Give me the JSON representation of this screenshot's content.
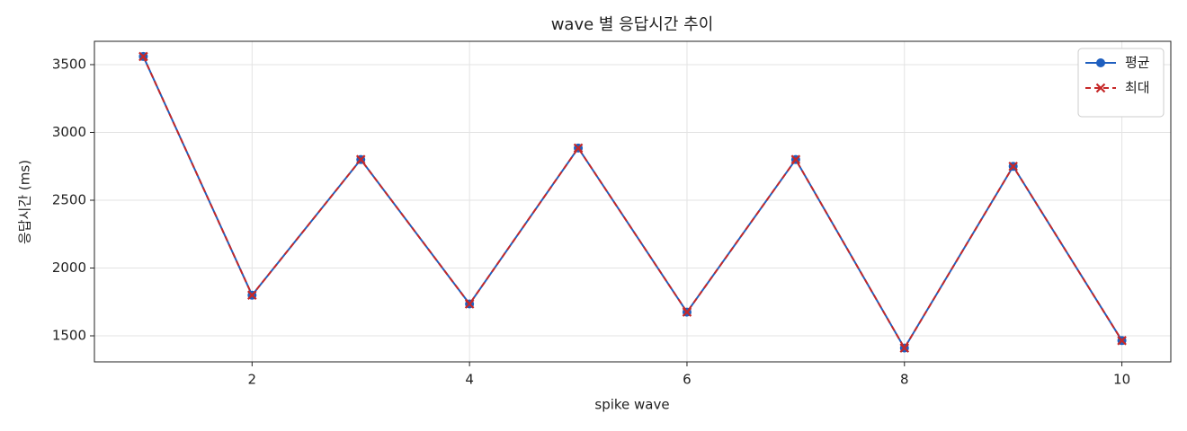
{
  "chart_data": {
    "type": "line",
    "title": "wave 별 응답시간 추이",
    "xlabel": "spike wave",
    "ylabel": "응답시간 (ms)",
    "x": [
      1,
      2,
      3,
      4,
      5,
      6,
      7,
      8,
      9,
      10
    ],
    "series": [
      {
        "name": "평균",
        "color": "#1f5fbf",
        "linestyle": "solid",
        "marker": "circle",
        "values": [
          3560,
          1800,
          2800,
          1735,
          2885,
          1675,
          2800,
          1410,
          2750,
          1465
        ]
      },
      {
        "name": "최대",
        "color": "#c62828",
        "linestyle": "dashed",
        "marker": "x",
        "values": [
          3560,
          1800,
          2800,
          1735,
          2885,
          1675,
          2800,
          1410,
          2750,
          1465
        ]
      }
    ],
    "xlim": [
      0.55,
      10.45
    ],
    "xticks": [
      2,
      4,
      6,
      8,
      10
    ],
    "ylim": [
      1308,
      3672
    ],
    "yticks": [
      1500,
      2000,
      2500,
      3000,
      3500
    ],
    "grid": true,
    "legend": "upper right"
  }
}
